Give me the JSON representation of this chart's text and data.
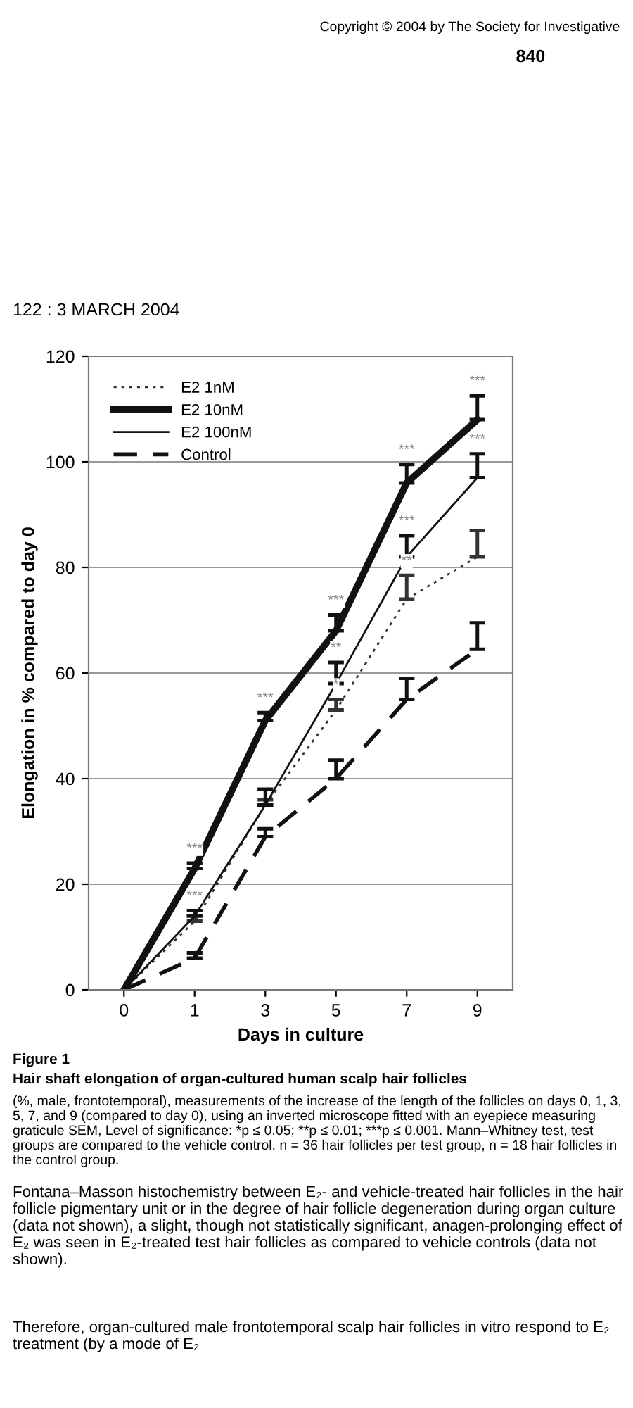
{
  "chart_data": {
    "type": "line",
    "title": "Figure 1",
    "subtitle": "Hair shaft elongation of organ-cultured human scalp hair follicles",
    "xlabel": "Days in culture",
    "ylabel": "Elongation in % compared to day 0",
    "categories": [
      "0",
      "1",
      "3",
      "5",
      "7",
      "9"
    ],
    "series": [
      {
        "name": "E2 1nM",
        "color": "#333333",
        "line_style": "dotted",
        "values": [
          0,
          13,
          35,
          53,
          74,
          82
        ],
        "errors": [
          null,
          [
            13,
            14
          ],
          [
            35,
            36
          ],
          [
            53,
            55
          ],
          [
            74,
            78.5
          ],
          [
            82,
            87
          ]
        ]
      },
      {
        "name": "E2 10nM",
        "color": "#111111",
        "line_style": "solid",
        "values": [
          0,
          23,
          51,
          68,
          96,
          108
        ],
        "errors": [
          null,
          [
            23,
            24
          ],
          [
            51,
            52.5
          ],
          [
            68,
            71
          ],
          [
            96,
            99.5
          ],
          [
            108,
            112.5
          ]
        ]
      },
      {
        "name": "E2 100nM",
        "color": "#111111",
        "line_style": "solid",
        "values": [
          0,
          14,
          35,
          58,
          82,
          97
        ],
        "errors": [
          null,
          [
            14,
            15
          ],
          [
            35,
            38
          ],
          [
            58,
            62
          ],
          [
            82,
            86
          ],
          [
            97,
            101.5
          ]
        ]
      },
      {
        "name": "Control",
        "color": "#111111",
        "line_style": "dashed",
        "values": [
          0,
          6,
          29,
          40,
          55,
          64.5
        ],
        "errors": [
          null,
          [
            6,
            7
          ],
          [
            29,
            30.5
          ],
          [
            40,
            43.5
          ],
          [
            55,
            59
          ],
          [
            64.5,
            69.5
          ]
        ]
      }
    ],
    "ylim": [
      0,
      120
    ],
    "yticks": [
      0,
      20,
      40,
      60,
      80,
      100,
      120
    ],
    "grid": "y",
    "legend": "top left",
    "marker": "none",
    "annotations": [
      {
        "text": "***",
        "x": "1",
        "y": 24
      },
      {
        "text": "***",
        "x": "1",
        "y": 15
      },
      {
        "text": "***",
        "x": "3",
        "y": 52.5
      },
      {
        "text": "***",
        "x": "5",
        "y": 71
      },
      {
        "text": "**",
        "x": "5",
        "y": 62
      },
      {
        "text": "*",
        "x": "5",
        "y": 55
      },
      {
        "text": "***",
        "x": "7",
        "y": 99.5
      },
      {
        "text": "***",
        "x": "7",
        "y": 86
      },
      {
        "text": "**",
        "x": "7",
        "y": 78.5
      },
      {
        "text": "***",
        "x": "9",
        "y": 112.5
      },
      {
        "text": "***",
        "x": "9",
        "y": 101.5
      },
      "Copyright © 2004 by The Society for Investigative",
      "840",
      "122 : 3 MARCH 2004",
      "(%, male, frontotemporal), measurements of the increase of the length of the follicles on days 0, 1, 3, 5, 7, and 9 (compared to day 0), using an inverted microscope fitted with an eyepiece measuring graticule SEM, Level of significance: *p ≤ 0.05; **p ≤ 0.01; ***p ≤ 0.001. Mann–Whitney test, test groups are compared to the vehicle control. n = 36 hair follicles per test group, n = 18 hair follicles in the control group.",
      "Fontana–Masson histochemistry between E₂- and vehicle-treated hair follicles in the hair follicle pigmentary unit or in the degree of hair follicle degeneration during organ culture (data not shown), a slight, though not statistically significant, anagen-prolonging effect of E₂ was seen in E₂-treated test hair follicles as compared to vehicle controls (data not shown).",
      "Therefore, organ-cultured male frontotemporal scalp hair follicles in vitro respond to E₂ treatment (by a mode of E₂"
    ]
  }
}
